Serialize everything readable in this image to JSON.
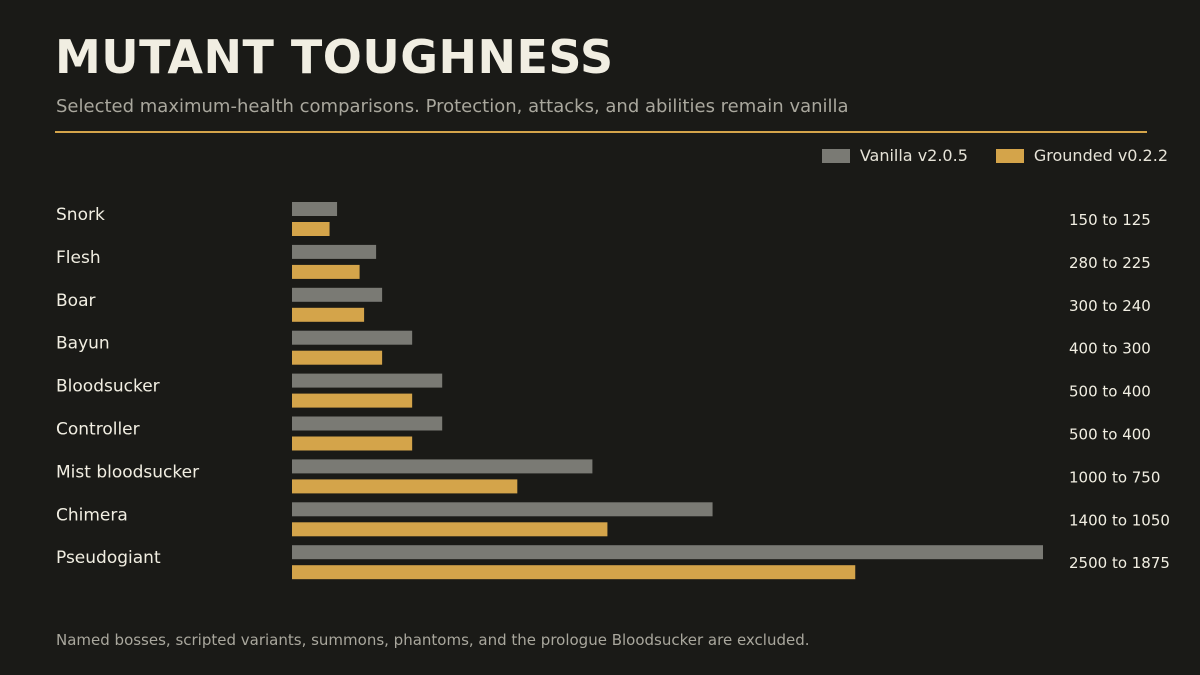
{
  "header": {
    "title": "MUTANT TOUGHNESS",
    "subtitle": "Selected maximum-health comparisons. Protection, attacks, and abilities remain vanilla"
  },
  "footnote": "Named bosses, scripted variants, summons, phantoms, and the prologue Bloodsucker are excluded.",
  "colors": {
    "vanilla": "#7a7a74",
    "grounded": "#d4a44a",
    "rule": "#d4a44a"
  },
  "chart_data": {
    "type": "bar",
    "orientation": "horizontal",
    "title": "MUTANT TOUGHNESS",
    "legend_position": "top-right",
    "grid": false,
    "xlim": [
      0,
      2500
    ],
    "categories": [
      "Snork",
      "Flesh",
      "Boar",
      "Bayun",
      "Bloodsucker",
      "Controller",
      "Mist bloodsucker",
      "Chimera",
      "Pseudogiant"
    ],
    "series": [
      {
        "name": "Vanilla v2.0.5",
        "color": "#7a7a74",
        "values": [
          150,
          280,
          300,
          400,
          500,
          500,
          1000,
          1400,
          2500
        ]
      },
      {
        "name": "Grounded v0.2.2",
        "color": "#d4a44a",
        "values": [
          125,
          225,
          240,
          300,
          400,
          400,
          750,
          1050,
          1875
        ]
      }
    ],
    "value_labels": [
      "150 to 125",
      "280 to 225",
      "300 to 240",
      "400 to 300",
      "500 to 400",
      "500 to 400",
      "1000 to 750",
      "1400 to 1050",
      "2500 to 1875"
    ]
  }
}
